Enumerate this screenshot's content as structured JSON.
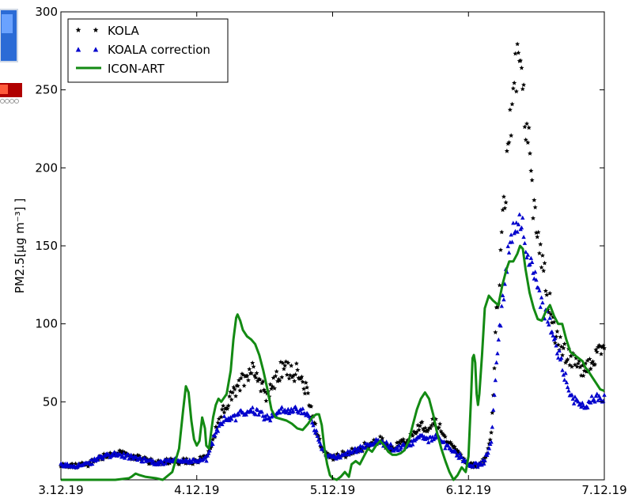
{
  "chart_data": {
    "type": "scatter",
    "title": "",
    "xlabel": "",
    "ylabel": "PM2.5[µg m⁻³] ]",
    "x_ticks": [
      "3.12.19",
      "4.12.19",
      "5.12.19",
      "6.12.19",
      "7.12.19"
    ],
    "x_range_days": [
      3,
      7
    ],
    "y_ticks": [
      50,
      100,
      150,
      200,
      250,
      300
    ],
    "ylim": [
      0,
      300
    ],
    "grid": false,
    "legend_position": "top-left",
    "series": [
      {
        "name": "KOLA",
        "marker": "star",
        "color": "#000000",
        "keypoints": [
          [
            3.0,
            9
          ],
          [
            3.1,
            9
          ],
          [
            3.2,
            10
          ],
          [
            3.3,
            15
          ],
          [
            3.4,
            17
          ],
          [
            3.5,
            16
          ],
          [
            3.6,
            13
          ],
          [
            3.7,
            11
          ],
          [
            3.8,
            12
          ],
          [
            3.9,
            12
          ],
          [
            4.0,
            12
          ],
          [
            4.07,
            15
          ],
          [
            4.14,
            30
          ],
          [
            4.2,
            45
          ],
          [
            4.27,
            55
          ],
          [
            4.33,
            63
          ],
          [
            4.38,
            70
          ],
          [
            4.42,
            72
          ],
          [
            4.47,
            62
          ],
          [
            4.52,
            55
          ],
          [
            4.57,
            62
          ],
          [
            4.62,
            70
          ],
          [
            4.67,
            72
          ],
          [
            4.72,
            70
          ],
          [
            4.77,
            63
          ],
          [
            4.82,
            55
          ],
          [
            4.87,
            35
          ],
          [
            4.92,
            20
          ],
          [
            4.97,
            15
          ],
          [
            5.05,
            15
          ],
          [
            5.15,
            18
          ],
          [
            5.25,
            22
          ],
          [
            5.35,
            25
          ],
          [
            5.45,
            20
          ],
          [
            5.55,
            25
          ],
          [
            5.65,
            35
          ],
          [
            5.7,
            30
          ],
          [
            5.75,
            38
          ],
          [
            5.82,
            28
          ],
          [
            5.9,
            20
          ],
          [
            5.95,
            15
          ],
          [
            6.0,
            10
          ],
          [
            6.07,
            9
          ],
          [
            6.12,
            12
          ],
          [
            6.17,
            30
          ],
          [
            6.2,
            95
          ],
          [
            6.22,
            120
          ],
          [
            6.25,
            160
          ],
          [
            6.28,
            190
          ],
          [
            6.3,
            225
          ],
          [
            6.33,
            248
          ],
          [
            6.36,
            262
          ],
          [
            6.38,
            270
          ],
          [
            6.4,
            258
          ],
          [
            6.43,
            225
          ],
          [
            6.46,
            195
          ],
          [
            6.5,
            165
          ],
          [
            6.53,
            150
          ],
          [
            6.56,
            130
          ],
          [
            6.6,
            110
          ],
          [
            6.65,
            90
          ],
          [
            6.7,
            82
          ],
          [
            6.75,
            78
          ],
          [
            6.8,
            72
          ],
          [
            6.85,
            70
          ],
          [
            6.9,
            75
          ],
          [
            6.95,
            80
          ],
          [
            7.0,
            88
          ]
        ]
      },
      {
        "name": "KOALA correction",
        "marker": "triangle",
        "color": "#0000cc",
        "keypoints": [
          [
            3.0,
            9
          ],
          [
            3.1,
            9
          ],
          [
            3.2,
            10
          ],
          [
            3.3,
            15
          ],
          [
            3.4,
            16
          ],
          [
            3.5,
            15
          ],
          [
            3.6,
            13
          ],
          [
            3.7,
            11
          ],
          [
            3.8,
            12
          ],
          [
            3.9,
            12
          ],
          [
            4.0,
            12
          ],
          [
            4.07,
            13
          ],
          [
            4.14,
            30
          ],
          [
            4.2,
            38
          ],
          [
            4.27,
            40
          ],
          [
            4.33,
            42
          ],
          [
            4.38,
            44
          ],
          [
            4.42,
            45
          ],
          [
            4.47,
            43
          ],
          [
            4.52,
            40
          ],
          [
            4.57,
            42
          ],
          [
            4.62,
            44
          ],
          [
            4.67,
            45
          ],
          [
            4.72,
            44
          ],
          [
            4.77,
            43
          ],
          [
            4.82,
            42
          ],
          [
            4.87,
            32
          ],
          [
            4.92,
            20
          ],
          [
            4.97,
            15
          ],
          [
            5.05,
            15
          ],
          [
            5.15,
            18
          ],
          [
            5.25,
            22
          ],
          [
            5.35,
            25
          ],
          [
            5.45,
            20
          ],
          [
            5.55,
            22
          ],
          [
            5.65,
            28
          ],
          [
            5.7,
            25
          ],
          [
            5.75,
            28
          ],
          [
            5.82,
            23
          ],
          [
            5.9,
            18
          ],
          [
            5.95,
            14
          ],
          [
            6.0,
            10
          ],
          [
            6.07,
            9
          ],
          [
            6.12,
            12
          ],
          [
            6.17,
            25
          ],
          [
            6.2,
            70
          ],
          [
            6.22,
            90
          ],
          [
            6.25,
            110
          ],
          [
            6.28,
            135
          ],
          [
            6.3,
            150
          ],
          [
            6.33,
            160
          ],
          [
            6.36,
            165
          ],
          [
            6.38,
            170
          ],
          [
            6.4,
            162
          ],
          [
            6.43,
            150
          ],
          [
            6.46,
            135
          ],
          [
            6.5,
            125
          ],
          [
            6.53,
            115
          ],
          [
            6.56,
            105
          ],
          [
            6.6,
            100
          ],
          [
            6.65,
            85
          ],
          [
            6.7,
            70
          ],
          [
            6.75,
            55
          ],
          [
            6.8,
            50
          ],
          [
            6.85,
            48
          ],
          [
            6.9,
            50
          ],
          [
            6.95,
            52
          ],
          [
            7.0,
            53
          ]
        ]
      },
      {
        "name": "ICON-ART",
        "marker": "line",
        "color": "#138a13",
        "points": [
          [
            3.0,
            0
          ],
          [
            3.1,
            0
          ],
          [
            3.2,
            0
          ],
          [
            3.4,
            0
          ],
          [
            3.5,
            1
          ],
          [
            3.52,
            2
          ],
          [
            3.55,
            4
          ],
          [
            3.58,
            3
          ],
          [
            3.62,
            2
          ],
          [
            3.7,
            1
          ],
          [
            3.75,
            0
          ],
          [
            3.82,
            5
          ],
          [
            3.87,
            20
          ],
          [
            3.9,
            45
          ],
          [
            3.92,
            60
          ],
          [
            3.94,
            56
          ],
          [
            3.96,
            38
          ],
          [
            3.98,
            26
          ],
          [
            4.0,
            22
          ],
          [
            4.02,
            25
          ],
          [
            4.04,
            40
          ],
          [
            4.06,
            33
          ],
          [
            4.07,
            22
          ],
          [
            4.09,
            20
          ],
          [
            4.12,
            40
          ],
          [
            4.14,
            48
          ],
          [
            4.16,
            52
          ],
          [
            4.18,
            50
          ],
          [
            4.22,
            55
          ],
          [
            4.25,
            70
          ],
          [
            4.27,
            90
          ],
          [
            4.29,
            104
          ],
          [
            4.3,
            106
          ],
          [
            4.32,
            102
          ],
          [
            4.34,
            96
          ],
          [
            4.37,
            92
          ],
          [
            4.4,
            90
          ],
          [
            4.43,
            87
          ],
          [
            4.46,
            80
          ],
          [
            4.49,
            70
          ],
          [
            4.52,
            58
          ],
          [
            4.55,
            45
          ],
          [
            4.58,
            40
          ],
          [
            4.62,
            39
          ],
          [
            4.66,
            38
          ],
          [
            4.7,
            36
          ],
          [
            4.74,
            33
          ],
          [
            4.78,
            32
          ],
          [
            4.82,
            36
          ],
          [
            4.85,
            40
          ],
          [
            4.88,
            42
          ],
          [
            4.9,
            42
          ],
          [
            4.92,
            35
          ],
          [
            4.94,
            20
          ],
          [
            4.96,
            10
          ],
          [
            4.98,
            3
          ],
          [
            5.0,
            1
          ],
          [
            5.03,
            0
          ],
          [
            5.06,
            2
          ],
          [
            5.09,
            5
          ],
          [
            5.12,
            2
          ],
          [
            5.14,
            10
          ],
          [
            5.17,
            12
          ],
          [
            5.2,
            10
          ],
          [
            5.23,
            15
          ],
          [
            5.26,
            20
          ],
          [
            5.29,
            18
          ],
          [
            5.32,
            22
          ],
          [
            5.35,
            25
          ],
          [
            5.38,
            22
          ],
          [
            5.41,
            18
          ],
          [
            5.44,
            16
          ],
          [
            5.47,
            16
          ],
          [
            5.5,
            17
          ],
          [
            5.53,
            19
          ],
          [
            5.56,
            25
          ],
          [
            5.59,
            35
          ],
          [
            5.62,
            45
          ],
          [
            5.65,
            52
          ],
          [
            5.68,
            56
          ],
          [
            5.71,
            52
          ],
          [
            5.74,
            42
          ],
          [
            5.77,
            30
          ],
          [
            5.8,
            20
          ],
          [
            5.83,
            12
          ],
          [
            5.86,
            5
          ],
          [
            5.89,
            0
          ],
          [
            5.92,
            3
          ],
          [
            5.95,
            8
          ],
          [
            5.98,
            5
          ],
          [
            6.0,
            15
          ],
          [
            6.02,
            55
          ],
          [
            6.03,
            78
          ],
          [
            6.04,
            80
          ],
          [
            6.05,
            75
          ],
          [
            6.06,
            55
          ],
          [
            6.07,
            48
          ],
          [
            6.08,
            55
          ],
          [
            6.1,
            80
          ],
          [
            6.12,
            110
          ],
          [
            6.15,
            118
          ],
          [
            6.18,
            115
          ],
          [
            6.22,
            112
          ],
          [
            6.25,
            125
          ],
          [
            6.28,
            135
          ],
          [
            6.3,
            140
          ],
          [
            6.33,
            140
          ],
          [
            6.36,
            145
          ],
          [
            6.38,
            150
          ],
          [
            6.4,
            148
          ],
          [
            6.42,
            135
          ],
          [
            6.45,
            120
          ],
          [
            6.48,
            110
          ],
          [
            6.51,
            103
          ],
          [
            6.54,
            102
          ],
          [
            6.57,
            108
          ],
          [
            6.6,
            112
          ],
          [
            6.63,
            105
          ],
          [
            6.66,
            100
          ],
          [
            6.69,
            100
          ],
          [
            6.72,
            90
          ],
          [
            6.75,
            82
          ],
          [
            6.78,
            80
          ],
          [
            6.81,
            78
          ],
          [
            6.84,
            76
          ],
          [
            6.86,
            72
          ],
          [
            6.88,
            70
          ],
          [
            6.91,
            66
          ],
          [
            6.94,
            62
          ],
          [
            6.97,
            58
          ],
          [
            7.0,
            57
          ]
        ]
      }
    ]
  }
}
